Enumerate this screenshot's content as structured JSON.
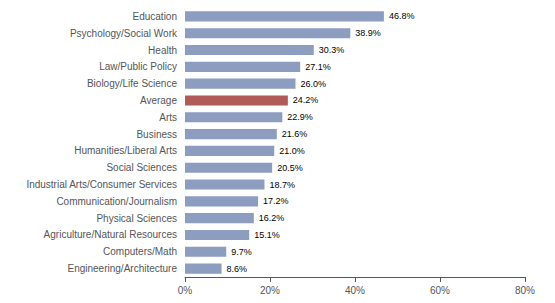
{
  "chart_data": {
    "type": "bar",
    "orientation": "horizontal",
    "categories": [
      "Engineering/Architecture",
      "Computers/Math",
      "Agriculture/Natural Resources",
      "Physical Sciences",
      "Communication/Journalism",
      "Industrial Arts/Consumer Services",
      "Social Sciences",
      "Humanities/Liberal Arts",
      "Business",
      "Arts",
      "Average",
      "Biology/Life Science",
      "Law/Public Policy",
      "Health",
      "Psychology/Social Work",
      "Education"
    ],
    "values": [
      8.6,
      9.7,
      15.1,
      16.2,
      17.2,
      18.7,
      20.5,
      21.0,
      21.6,
      22.9,
      24.2,
      26.0,
      27.1,
      30.3,
      38.9,
      46.8
    ],
    "value_labels": [
      "8.6%",
      "9.7%",
      "15.1%",
      "16.2%",
      "17.2%",
      "18.7%",
      "20.5%",
      "21.0%",
      "21.6%",
      "22.9%",
      "24.2%",
      "26.0%",
      "27.1%",
      "30.3%",
      "38.9%",
      "46.8%"
    ],
    "data_labels": true,
    "colors": [
      "#8C9DC0",
      "#8C9DC0",
      "#8C9DC0",
      "#8C9DC0",
      "#8C9DC0",
      "#8C9DC0",
      "#8C9DC0",
      "#8C9DC0",
      "#8C9DC0",
      "#8C9DC0",
      "#B05B57",
      "#8C9DC0",
      "#8C9DC0",
      "#8C9DC0",
      "#8C9DC0",
      "#8C9DC0"
    ],
    "xlim": [
      0,
      80
    ],
    "xticks": [
      {
        "value": 0,
        "label": "0%"
      },
      {
        "value": 20,
        "label": "20%"
      },
      {
        "value": 40,
        "label": "40%"
      },
      {
        "value": 60,
        "label": "60%"
      },
      {
        "value": 80,
        "label": "80%"
      }
    ],
    "grid": false
  }
}
